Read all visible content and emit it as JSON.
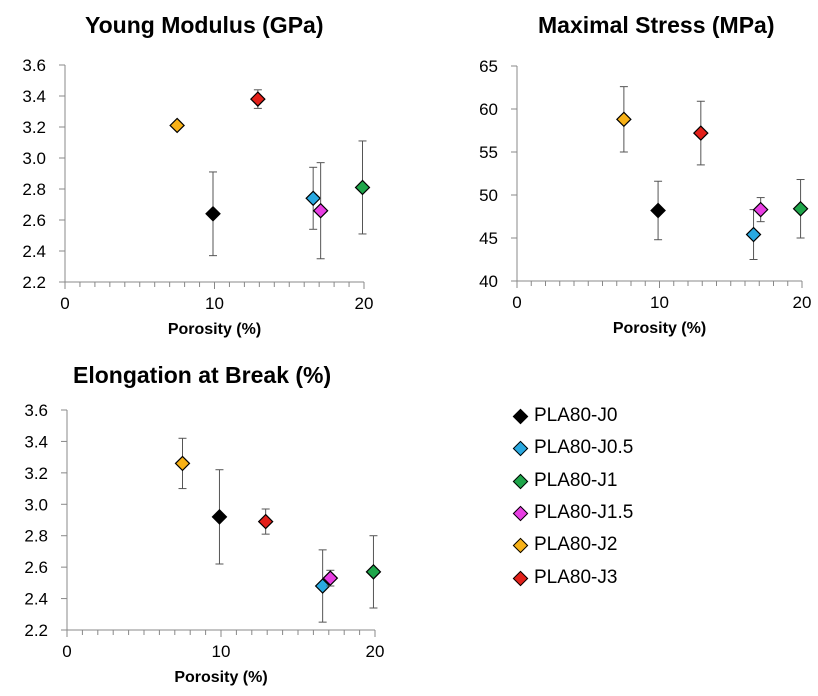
{
  "series_colors": {
    "PLA80-J0": "#000000",
    "PLA80-J0.5": "#29A9E1",
    "PLA80-J1": "#1EA64A",
    "PLA80-J1.5": "#E83EE3",
    "PLA80-J2": "#F7B117",
    "PLA80-J3": "#E3201A"
  },
  "legend": [
    "PLA80-J0",
    "PLA80-J0.5",
    "PLA80-J1",
    "PLA80-J1.5",
    "PLA80-J2",
    "PLA80-J3"
  ],
  "chart_data": [
    {
      "type": "scatter",
      "title": "Young Modulus (GPa)",
      "xlabel": "Porosity (%)",
      "ylabel": "",
      "xlim": [
        0,
        20
      ],
      "ylim": [
        2.2,
        3.6
      ],
      "x_ticks": [
        "0",
        "10",
        "20"
      ],
      "y_ticks": [
        "2.2",
        "2.4",
        "2.6",
        "2.8",
        "3.0",
        "3.2",
        "3.4",
        "3.6"
      ],
      "grid": false,
      "series": [
        {
          "name": "PLA80-J0",
          "x": 9.9,
          "y": 2.64,
          "err": 0.27
        },
        {
          "name": "PLA80-J0.5",
          "x": 16.6,
          "y": 2.74,
          "err": 0.2
        },
        {
          "name": "PLA80-J1",
          "x": 19.9,
          "y": 2.81,
          "err": 0.3
        },
        {
          "name": "PLA80-J1.5",
          "x": 17.1,
          "y": 2.66,
          "err": 0.31
        },
        {
          "name": "PLA80-J2",
          "x": 7.5,
          "y": 3.21,
          "err": 0.0
        },
        {
          "name": "PLA80-J3",
          "x": 12.9,
          "y": 3.38,
          "err": 0.06
        }
      ]
    },
    {
      "type": "scatter",
      "title": "Maximal Stress (MPa)",
      "xlabel": "Porosity (%)",
      "ylabel": "",
      "xlim": [
        0,
        20
      ],
      "ylim": [
        40,
        65
      ],
      "x_ticks": [
        "0",
        "10",
        "20"
      ],
      "y_ticks": [
        "40",
        "45",
        "50",
        "55",
        "60",
        "65"
      ],
      "grid": false,
      "series": [
        {
          "name": "PLA80-J0",
          "x": 9.9,
          "y": 48.2,
          "err": 3.4
        },
        {
          "name": "PLA80-J0.5",
          "x": 16.6,
          "y": 45.4,
          "err": 2.9
        },
        {
          "name": "PLA80-J1",
          "x": 19.9,
          "y": 48.4,
          "err": 3.4
        },
        {
          "name": "PLA80-J1.5",
          "x": 17.1,
          "y": 48.3,
          "err": 1.4
        },
        {
          "name": "PLA80-J2",
          "x": 7.5,
          "y": 58.8,
          "err": 3.8
        },
        {
          "name": "PLA80-J3",
          "x": 12.9,
          "y": 57.2,
          "err": 3.7
        }
      ]
    },
    {
      "type": "scatter",
      "title": "Elongation at Break (%)",
      "xlabel": "Porosity (%)",
      "ylabel": "",
      "xlim": [
        0,
        20
      ],
      "ylim": [
        2.2,
        3.6
      ],
      "x_ticks": [
        "0",
        "10",
        "20"
      ],
      "y_ticks": [
        "2.2",
        "2.4",
        "2.6",
        "2.8",
        "3.0",
        "3.2",
        "3.4",
        "3.6"
      ],
      "grid": false,
      "series": [
        {
          "name": "PLA80-J0",
          "x": 9.9,
          "y": 2.92,
          "err": 0.3
        },
        {
          "name": "PLA80-J0.5",
          "x": 16.6,
          "y": 2.48,
          "err": 0.23
        },
        {
          "name": "PLA80-J1",
          "x": 19.9,
          "y": 2.57,
          "err": 0.23
        },
        {
          "name": "PLA80-J1.5",
          "x": 17.1,
          "y": 2.53,
          "err": 0.05
        },
        {
          "name": "PLA80-J2",
          "x": 7.5,
          "y": 3.26,
          "err": 0.16
        },
        {
          "name": "PLA80-J3",
          "x": 12.9,
          "y": 2.89,
          "err": 0.08
        }
      ]
    }
  ]
}
